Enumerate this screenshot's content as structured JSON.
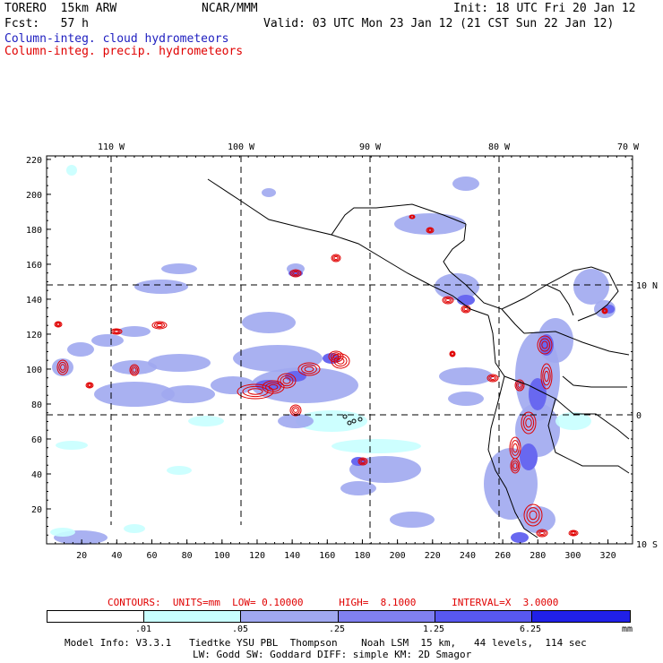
{
  "header": {
    "model": "TORERO  15km ARW",
    "org": "NCAR/MMM",
    "init": "Init: 18 UTC Fri 20 Jan 12",
    "fcst": "Fcst:   57 h",
    "valid": "Valid: 03 UTC Mon 23 Jan 12 (21 CST Sun 22 Jan 12)",
    "field1": "Column-integ. cloud hydrometeors",
    "field2": "Column-integ. precip. hydrometeors",
    "field1_color": "#2020c0",
    "field2_color": "#e00000"
  },
  "map": {
    "lon_labels": [
      "110 W",
      "100 W",
      "90 W",
      "80 W",
      "70 W"
    ],
    "lat_labels": [
      "10 N",
      "0",
      "10 S"
    ],
    "x_ticks": [
      "20",
      "40",
      "60",
      "80",
      "100",
      "120",
      "140",
      "160",
      "180",
      "200",
      "220",
      "240",
      "260",
      "280",
      "300",
      "320"
    ],
    "y_ticks": [
      "20",
      "40",
      "60",
      "80",
      "100",
      "120",
      "140",
      "160",
      "180",
      "200",
      "220"
    ],
    "colors": {
      "cloud_light": "#c8ffff",
      "cloud_mid": "#a0a8f0",
      "cloud_dark": "#6868f0",
      "precip": "#e00000",
      "coast": "#000000"
    }
  },
  "contours_line": {
    "label": "CONTOURS:  UNITS=mm  LOW= 0.10000      HIGH=  8.1000      INTERVAL=X  3.0000"
  },
  "scale": {
    "labels": [
      ".01",
      ".05",
      ".25",
      "1.25",
      "6.25"
    ],
    "unit": "mm",
    "colors": [
      "#ffffff",
      "#c8ffff",
      "#a0a8f0",
      "#8080f0",
      "#5858f0",
      "#2020e8"
    ]
  },
  "footer": {
    "line1": "Model Info: V3.3.1   Tiedtke YSU PBL  Thompson    Noah LSM  15 km,   44 levels,  114 sec",
    "line2": "LW: Godd SW: Goddard DIFF: simple KM: 2D Smagor"
  }
}
